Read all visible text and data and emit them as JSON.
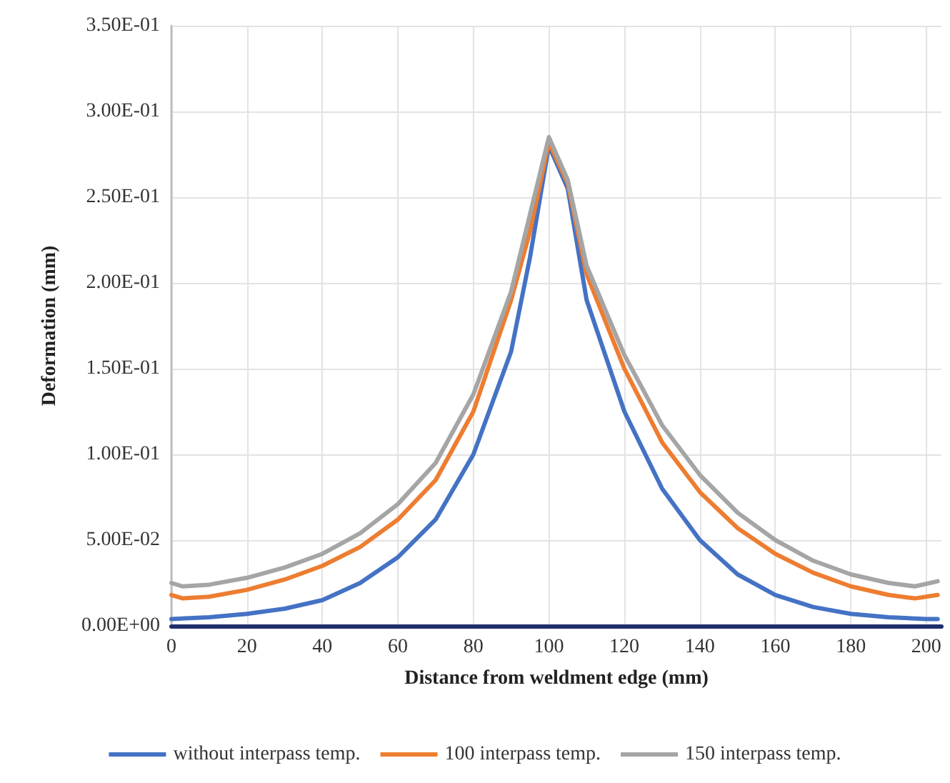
{
  "chart_data": {
    "type": "line",
    "xlabel": "Distance from weldment edge (mm)",
    "ylabel": "Deformation (mm)",
    "xlim": [
      0,
      204
    ],
    "xticks": [
      0,
      20,
      40,
      60,
      80,
      100,
      120,
      140,
      160,
      180,
      200
    ],
    "ylim": [
      0,
      0.35
    ],
    "yticks": [
      {
        "value": 0,
        "label": "0.00E+00"
      },
      {
        "value": 0.05,
        "label": "5.00E-02"
      },
      {
        "value": 0.1,
        "label": "1.00E-01"
      },
      {
        "value": 0.15,
        "label": "1.50E-01"
      },
      {
        "value": 0.2,
        "label": "2.00E-01"
      },
      {
        "value": 0.25,
        "label": "2.50E-01"
      },
      {
        "value": 0.3,
        "label": "3.00E-01"
      },
      {
        "value": 0.35,
        "label": "3.50E-01"
      }
    ],
    "grid": true,
    "legend": "bottom",
    "marker": "none",
    "line_style": "solid",
    "series": [
      {
        "name": "without interpass temp.",
        "color": "#4472c4",
        "x": [
          0,
          10,
          20,
          30,
          40,
          50,
          60,
          70,
          80,
          90,
          95,
          100,
          105,
          110,
          120,
          130,
          140,
          150,
          160,
          170,
          180,
          190,
          200,
          203
        ],
        "values": [
          0.004,
          0.005,
          0.007,
          0.01,
          0.015,
          0.025,
          0.04,
          0.062,
          0.1,
          0.16,
          0.215,
          0.28,
          0.255,
          0.19,
          0.125,
          0.08,
          0.05,
          0.03,
          0.018,
          0.011,
          0.007,
          0.005,
          0.004,
          0.004
        ]
      },
      {
        "name": "100 interpass temp.",
        "color": "#ed7d31",
        "x": [
          0,
          3,
          10,
          20,
          30,
          40,
          50,
          60,
          70,
          80,
          90,
          95,
          100,
          105,
          110,
          120,
          130,
          140,
          150,
          160,
          170,
          180,
          190,
          197,
          203
        ],
        "values": [
          0.018,
          0.016,
          0.017,
          0.021,
          0.027,
          0.035,
          0.046,
          0.062,
          0.085,
          0.125,
          0.19,
          0.23,
          0.282,
          0.258,
          0.205,
          0.15,
          0.107,
          0.078,
          0.057,
          0.042,
          0.031,
          0.023,
          0.018,
          0.016,
          0.018
        ]
      },
      {
        "name": "150 interpass temp.",
        "color": "#a5a5a5",
        "x": [
          0,
          3,
          10,
          20,
          30,
          40,
          50,
          60,
          70,
          80,
          90,
          95,
          100,
          105,
          110,
          120,
          130,
          140,
          150,
          160,
          170,
          180,
          190,
          197,
          203
        ],
        "values": [
          0.025,
          0.023,
          0.024,
          0.028,
          0.034,
          0.042,
          0.054,
          0.071,
          0.095,
          0.135,
          0.195,
          0.24,
          0.285,
          0.26,
          0.21,
          0.158,
          0.117,
          0.088,
          0.066,
          0.05,
          0.038,
          0.03,
          0.025,
          0.023,
          0.026
        ]
      }
    ]
  }
}
